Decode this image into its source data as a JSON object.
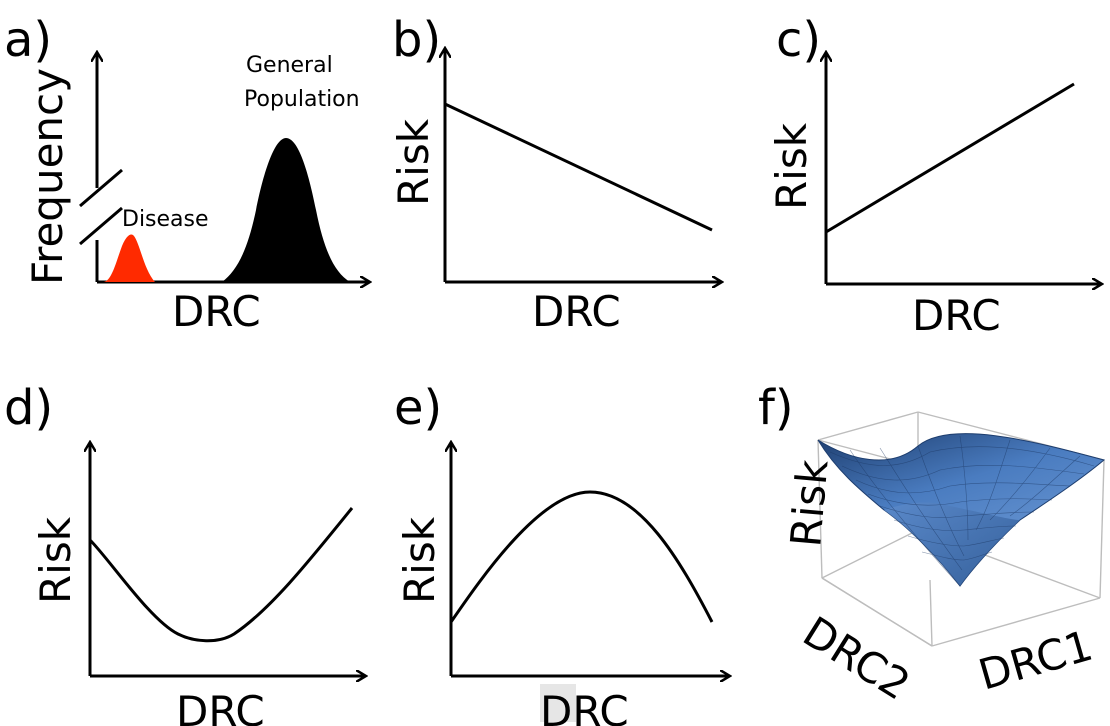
{
  "panels": {
    "a": {
      "label": "a)",
      "ylabel": "Frequency",
      "xlabel": "DRC",
      "annotations": {
        "disease": "Disease",
        "general_line1": "General",
        "general_line2": "Population"
      },
      "colors": {
        "disease": "#ff2a00",
        "general": "#000000"
      }
    },
    "b": {
      "label": "b)",
      "ylabel": "Risk",
      "xlabel": "DRC",
      "shape": "decreasing linear"
    },
    "c": {
      "label": "c)",
      "ylabel": "Risk",
      "xlabel": "DRC",
      "shape": "increasing linear"
    },
    "d": {
      "label": "d)",
      "ylabel": "Risk",
      "xlabel": "DRC",
      "shape": "U-shaped"
    },
    "e": {
      "label": "e)",
      "ylabel": "Risk",
      "xlabel": "DRC",
      "shape": "inverted U-shaped"
    },
    "f": {
      "label": "f)",
      "zlabel": "Risk",
      "xlabel": "DRC1",
      "ylabel": "DRC2",
      "shape": "saddle surface",
      "colors": {
        "surface": "#3f6fae",
        "surface_light": "#7fa8dc",
        "surface_dark": "#1d3d6e"
      }
    }
  }
}
